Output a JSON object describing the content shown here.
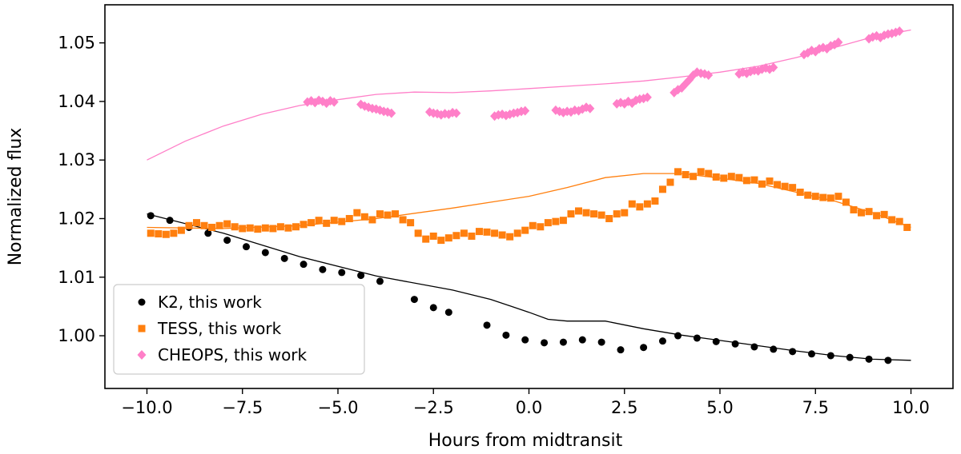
{
  "chart_data": {
    "type": "scatter",
    "xlabel": "Hours from midtransit",
    "ylabel": "Normalized flux",
    "xlim": [
      -11.1,
      11.1
    ],
    "ylim": [
      0.991,
      1.0565
    ],
    "x_ticks": [
      -10.0,
      -7.5,
      -5.0,
      -2.5,
      0.0,
      2.5,
      5.0,
      7.5,
      10.0
    ],
    "x_tick_labels": [
      "−10.0",
      "−7.5",
      "−5.0",
      "−2.5",
      "0.0",
      "2.5",
      "5.0",
      "7.5",
      "10.0"
    ],
    "y_ticks": [
      1.0,
      1.01,
      1.02,
      1.03,
      1.04,
      1.05
    ],
    "y_tick_labels": [
      "1.00",
      "1.01",
      "1.02",
      "1.03",
      "1.04",
      "1.05"
    ],
    "legend_position": "lower-left",
    "series": [
      {
        "name": "K2, this work",
        "marker": "circle",
        "color": "#000000",
        "points": [
          [
            -9.9,
            1.0205
          ],
          [
            -9.4,
            1.0197
          ],
          [
            -8.9,
            1.0185
          ],
          [
            -8.4,
            1.0175
          ],
          [
            -7.9,
            1.0163
          ],
          [
            -7.4,
            1.0152
          ],
          [
            -6.9,
            1.0142
          ],
          [
            -6.4,
            1.0132
          ],
          [
            -5.9,
            1.0122
          ],
          [
            -5.4,
            1.0113
          ],
          [
            -4.9,
            1.0108
          ],
          [
            -4.4,
            1.0103
          ],
          [
            -3.9,
            1.0093
          ],
          [
            -3.0,
            1.0062
          ],
          [
            -2.5,
            1.0048
          ],
          [
            -2.1,
            1.004
          ],
          [
            -1.1,
            1.0018
          ],
          [
            -0.6,
            1.0001
          ],
          [
            -0.1,
            0.9993
          ],
          [
            0.4,
            0.9988
          ],
          [
            0.9,
            0.9989
          ],
          [
            1.4,
            0.9993
          ],
          [
            1.9,
            0.9989
          ],
          [
            2.4,
            0.9976
          ],
          [
            3.0,
            0.998
          ],
          [
            3.5,
            0.9991
          ],
          [
            3.9,
            1.0
          ],
          [
            4.4,
            0.9996
          ],
          [
            4.9,
            0.999
          ],
          [
            5.4,
            0.9986
          ],
          [
            5.9,
            0.9981
          ],
          [
            6.4,
            0.9977
          ],
          [
            6.9,
            0.9973
          ],
          [
            7.4,
            0.9969
          ],
          [
            7.9,
            0.9966
          ],
          [
            8.4,
            0.9963
          ],
          [
            8.9,
            0.996
          ],
          [
            9.4,
            0.9958
          ]
        ]
      },
      {
        "name": "TESS, this work",
        "marker": "square",
        "color": "#ff7f0e",
        "points": [
          [
            -9.9,
            1.0175
          ],
          [
            -9.7,
            1.0174
          ],
          [
            -9.5,
            1.0173
          ],
          [
            -9.3,
            1.0175
          ],
          [
            -9.1,
            1.018
          ],
          [
            -8.9,
            1.0188
          ],
          [
            -8.7,
            1.0193
          ],
          [
            -8.5,
            1.0188
          ],
          [
            -8.3,
            1.0185
          ],
          [
            -8.1,
            1.0188
          ],
          [
            -7.9,
            1.0191
          ],
          [
            -7.7,
            1.0186
          ],
          [
            -7.5,
            1.0183
          ],
          [
            -7.3,
            1.0184
          ],
          [
            -7.1,
            1.0182
          ],
          [
            -6.9,
            1.0184
          ],
          [
            -6.7,
            1.0183
          ],
          [
            -6.5,
            1.0186
          ],
          [
            -6.3,
            1.0184
          ],
          [
            -6.1,
            1.0186
          ],
          [
            -5.9,
            1.019
          ],
          [
            -5.7,
            1.0193
          ],
          [
            -5.5,
            1.0197
          ],
          [
            -5.3,
            1.0192
          ],
          [
            -5.1,
            1.0197
          ],
          [
            -4.9,
            1.0195
          ],
          [
            -4.7,
            1.02
          ],
          [
            -4.5,
            1.021
          ],
          [
            -4.3,
            1.0203
          ],
          [
            -4.1,
            1.0198
          ],
          [
            -3.9,
            1.0208
          ],
          [
            -3.7,
            1.0206
          ],
          [
            -3.5,
            1.0208
          ],
          [
            -3.3,
            1.0198
          ],
          [
            -3.1,
            1.0193
          ],
          [
            -2.9,
            1.0175
          ],
          [
            -2.7,
            1.0165
          ],
          [
            -2.5,
            1.017
          ],
          [
            -2.3,
            1.0163
          ],
          [
            -2.1,
            1.0167
          ],
          [
            -1.9,
            1.0171
          ],
          [
            -1.7,
            1.0175
          ],
          [
            -1.5,
            1.017
          ],
          [
            -1.3,
            1.0178
          ],
          [
            -1.1,
            1.0177
          ],
          [
            -0.9,
            1.0175
          ],
          [
            -0.7,
            1.0172
          ],
          [
            -0.5,
            1.0169
          ],
          [
            -0.3,
            1.0175
          ],
          [
            -0.1,
            1.018
          ],
          [
            0.1,
            1.0188
          ],
          [
            0.3,
            1.0186
          ],
          [
            0.5,
            1.0193
          ],
          [
            0.7,
            1.0195
          ],
          [
            0.9,
            1.0197
          ],
          [
            1.1,
            1.0208
          ],
          [
            1.3,
            1.0213
          ],
          [
            1.5,
            1.021
          ],
          [
            1.7,
            1.0208
          ],
          [
            1.9,
            1.0206
          ],
          [
            2.1,
            1.02
          ],
          [
            2.3,
            1.0208
          ],
          [
            2.5,
            1.021
          ],
          [
            2.7,
            1.0225
          ],
          [
            2.9,
            1.022
          ],
          [
            3.1,
            1.0225
          ],
          [
            3.3,
            1.023
          ],
          [
            3.5,
            1.025
          ],
          [
            3.7,
            1.0262
          ],
          [
            3.9,
            1.028
          ],
          [
            4.1,
            1.0275
          ],
          [
            4.3,
            1.0272
          ],
          [
            4.5,
            1.028
          ],
          [
            4.7,
            1.0277
          ],
          [
            4.9,
            1.0271
          ],
          [
            5.1,
            1.0269
          ],
          [
            5.3,
            1.0272
          ],
          [
            5.5,
            1.027
          ],
          [
            5.7,
            1.0265
          ],
          [
            5.9,
            1.0266
          ],
          [
            6.1,
            1.0259
          ],
          [
            6.3,
            1.0264
          ],
          [
            6.5,
            1.0258
          ],
          [
            6.7,
            1.0255
          ],
          [
            6.9,
            1.0253
          ],
          [
            7.1,
            1.0245
          ],
          [
            7.3,
            1.024
          ],
          [
            7.5,
            1.0238
          ],
          [
            7.7,
            1.0236
          ],
          [
            7.9,
            1.0235
          ],
          [
            8.1,
            1.0238
          ],
          [
            8.3,
            1.0228
          ],
          [
            8.5,
            1.0215
          ],
          [
            8.7,
            1.021
          ],
          [
            8.9,
            1.0212
          ],
          [
            9.1,
            1.0205
          ],
          [
            9.3,
            1.0207
          ],
          [
            9.5,
            1.0198
          ],
          [
            9.7,
            1.0195
          ],
          [
            9.9,
            1.0185
          ]
        ]
      },
      {
        "name": "CHEOPS, this work",
        "marker": "diamond",
        "color": "#ff7fc8",
        "points": [
          [
            -5.8,
            1.0399
          ],
          [
            -5.7,
            1.0401
          ],
          [
            -5.6,
            1.0398
          ],
          [
            -5.5,
            1.0402
          ],
          [
            -5.4,
            1.04
          ],
          [
            -5.3,
            1.0397
          ],
          [
            -5.2,
            1.0401
          ],
          [
            -5.1,
            1.0399
          ],
          [
            -4.4,
            1.0395
          ],
          [
            -4.3,
            1.0392
          ],
          [
            -4.2,
            1.039
          ],
          [
            -4.1,
            1.0388
          ],
          [
            -4.0,
            1.0387
          ],
          [
            -3.9,
            1.0385
          ],
          [
            -3.8,
            1.0383
          ],
          [
            -3.7,
            1.0382
          ],
          [
            -3.6,
            1.038
          ],
          [
            -2.6,
            1.0382
          ],
          [
            -2.5,
            1.038
          ],
          [
            -2.4,
            1.0379
          ],
          [
            -2.3,
            1.0377
          ],
          [
            -2.2,
            1.0379
          ],
          [
            -2.1,
            1.0378
          ],
          [
            -2.0,
            1.0381
          ],
          [
            -1.9,
            1.038
          ],
          [
            -0.9,
            1.0375
          ],
          [
            -0.8,
            1.0377
          ],
          [
            -0.7,
            1.0378
          ],
          [
            -0.6,
            1.0376
          ],
          [
            -0.5,
            1.0378
          ],
          [
            -0.4,
            1.038
          ],
          [
            -0.3,
            1.0381
          ],
          [
            -0.2,
            1.0383
          ],
          [
            -0.1,
            1.0384
          ],
          [
            0.7,
            1.0385
          ],
          [
            0.8,
            1.0383
          ],
          [
            0.9,
            1.0381
          ],
          [
            1.0,
            1.0383
          ],
          [
            1.1,
            1.0382
          ],
          [
            1.2,
            1.0385
          ],
          [
            1.3,
            1.0384
          ],
          [
            1.4,
            1.0387
          ],
          [
            1.5,
            1.039
          ],
          [
            1.6,
            1.0388
          ],
          [
            2.3,
            1.0396
          ],
          [
            2.4,
            1.0398
          ],
          [
            2.5,
            1.0396
          ],
          [
            2.6,
            1.04
          ],
          [
            2.7,
            1.0397
          ],
          [
            2.8,
            1.0402
          ],
          [
            2.9,
            1.0404
          ],
          [
            3.0,
            1.0405
          ],
          [
            3.1,
            1.0407
          ],
          [
            3.8,
            1.0415
          ],
          [
            3.9,
            1.042
          ],
          [
            4.0,
            1.0423
          ],
          [
            4.1,
            1.043
          ],
          [
            4.2,
            1.0437
          ],
          [
            4.3,
            1.0445
          ],
          [
            4.4,
            1.045
          ],
          [
            4.5,
            1.0448
          ],
          [
            4.6,
            1.0447
          ],
          [
            4.7,
            1.0445
          ],
          [
            5.5,
            1.0447
          ],
          [
            5.6,
            1.045
          ],
          [
            5.7,
            1.0448
          ],
          [
            5.8,
            1.0451
          ],
          [
            5.9,
            1.0453
          ],
          [
            6.0,
            1.0452
          ],
          [
            6.1,
            1.0455
          ],
          [
            6.2,
            1.0457
          ],
          [
            6.3,
            1.0455
          ],
          [
            6.4,
            1.0458
          ],
          [
            7.2,
            1.048
          ],
          [
            7.3,
            1.0483
          ],
          [
            7.4,
            1.0487
          ],
          [
            7.5,
            1.0485
          ],
          [
            7.6,
            1.049
          ],
          [
            7.7,
            1.0492
          ],
          [
            7.8,
            1.049
          ],
          [
            7.9,
            1.0495
          ],
          [
            8.0,
            1.0497
          ],
          [
            8.1,
            1.0501
          ],
          [
            8.9,
            1.0507
          ],
          [
            9.0,
            1.051
          ],
          [
            9.1,
            1.0512
          ],
          [
            9.2,
            1.0509
          ],
          [
            9.3,
            1.0513
          ],
          [
            9.4,
            1.0515
          ],
          [
            9.5,
            1.0516
          ],
          [
            9.6,
            1.0518
          ],
          [
            9.7,
            1.052
          ]
        ]
      }
    ],
    "model_lines": [
      {
        "color": "#000000",
        "points": [
          [
            -10.0,
            1.0208
          ],
          [
            -8.0,
            1.0175
          ],
          [
            -6.0,
            1.0135
          ],
          [
            -4.0,
            1.0102
          ],
          [
            -2.0,
            1.0078
          ],
          [
            -1.0,
            1.0062
          ],
          [
            0.0,
            1.004
          ],
          [
            0.5,
            1.0028
          ],
          [
            1.0,
            1.0025
          ],
          [
            2.0,
            1.0025
          ],
          [
            3.0,
            1.0012
          ],
          [
            4.0,
            1.0001
          ],
          [
            5.0,
            0.9992
          ],
          [
            6.0,
            0.9983
          ],
          [
            7.0,
            0.9974
          ],
          [
            8.0,
            0.9966
          ],
          [
            9.0,
            0.996
          ],
          [
            10.0,
            0.9958
          ]
        ]
      },
      {
        "color": "#ff7f0e",
        "points": [
          [
            -10.0,
            1.0185
          ],
          [
            -8.0,
            1.0183
          ],
          [
            -6.0,
            1.0188
          ],
          [
            -4.0,
            1.02
          ],
          [
            -2.0,
            1.0218
          ],
          [
            0.0,
            1.0238
          ],
          [
            1.0,
            1.0253
          ],
          [
            2.0,
            1.027
          ],
          [
            3.0,
            1.0277
          ],
          [
            4.0,
            1.0277
          ],
          [
            5.0,
            1.0269
          ],
          [
            6.0,
            1.026
          ],
          [
            7.0,
            1.0245
          ],
          [
            8.0,
            1.023
          ],
          [
            9.0,
            1.021
          ],
          [
            10.0,
            1.0185
          ]
        ]
      },
      {
        "color": "#ff7fc8",
        "points": [
          [
            -10.0,
            1.03
          ],
          [
            -9.0,
            1.0332
          ],
          [
            -8.0,
            1.0358
          ],
          [
            -7.0,
            1.0378
          ],
          [
            -6.0,
            1.0393
          ],
          [
            -5.0,
            1.0403
          ],
          [
            -4.0,
            1.0412
          ],
          [
            -3.0,
            1.0416
          ],
          [
            -2.0,
            1.0415
          ],
          [
            -1.0,
            1.0418
          ],
          [
            0.0,
            1.0422
          ],
          [
            1.0,
            1.0426
          ],
          [
            2.0,
            1.043
          ],
          [
            3.0,
            1.0435
          ],
          [
            4.0,
            1.0442
          ],
          [
            5.0,
            1.045
          ],
          [
            6.0,
            1.046
          ],
          [
            7.0,
            1.0475
          ],
          [
            8.0,
            1.0492
          ],
          [
            9.0,
            1.051
          ],
          [
            10.0,
            1.0522
          ]
        ]
      }
    ]
  }
}
